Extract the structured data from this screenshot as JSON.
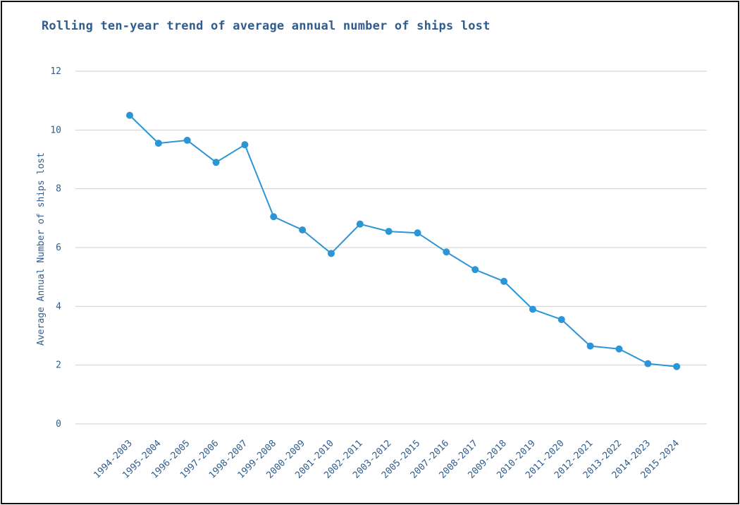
{
  "chart_data": {
    "type": "line",
    "title": "Rolling ten-year trend of average annual number of ships lost",
    "xlabel": "",
    "ylabel": "Average Annual Number of ships lost",
    "ylim": [
      0,
      12
    ],
    "yticks": [
      0,
      2,
      4,
      6,
      8,
      10,
      12
    ],
    "grid": true,
    "categories": [
      "1994-2003",
      "1995-2004",
      "1996-2005",
      "1997-2006",
      "1998-2007",
      "1999-2008",
      "2000-2009",
      "2001-2010",
      "2002-2011",
      "2003-2012",
      "2005-2015",
      "2007-2016",
      "2008-2017",
      "2009-2018",
      "2010-2019",
      "2011-2020",
      "2012-2021",
      "2013-2022",
      "2014-2023",
      "2015-2024"
    ],
    "series": [
      {
        "values": [
          10.5,
          9.55,
          9.65,
          8.9,
          9.5,
          7.05,
          6.6,
          5.8,
          6.8,
          6.55,
          6.5,
          5.85,
          5.25,
          4.85,
          3.9,
          3.55,
          2.65,
          2.55,
          2.05,
          1.95
        ],
        "color": "#2b95d6"
      }
    ],
    "colors": {
      "grid": "#cfcfcf",
      "text": "#2f5d8f",
      "line": "#2b95d6"
    }
  }
}
